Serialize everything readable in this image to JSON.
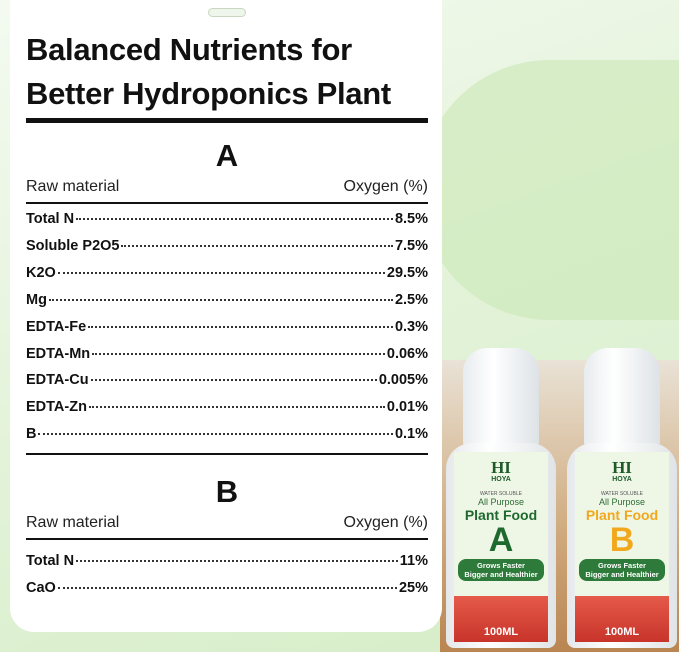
{
  "title_lines": [
    "Balanced Nutrients for",
    "Better Hydroponics Plant"
  ],
  "section_a": {
    "label": "A",
    "col1": "Raw material",
    "col2": "Oxygen (%)",
    "rows": [
      {
        "name": "Total N",
        "value": "8.5%"
      },
      {
        "name": "Soluble P2O5",
        "value": "7.5%"
      },
      {
        "name": "K2O",
        "value": "29.5%"
      },
      {
        "name": "Mg",
        "value": "2.5%"
      },
      {
        "name": "EDTA-Fe",
        "value": "0.3%"
      },
      {
        "name": "EDTA-Mn",
        "value": "0.06%"
      },
      {
        "name": "EDTA-Cu",
        "value": "0.005%"
      },
      {
        "name": "EDTA-Zn",
        "value": "0.01%"
      },
      {
        "name": "B",
        "value": "0.1%"
      }
    ]
  },
  "section_b": {
    "label": "B",
    "col1": "Raw material",
    "col2": "Oxygen (%)",
    "rows": [
      {
        "name": "Total N",
        "value": "11%"
      },
      {
        "name": "CaO",
        "value": "25%"
      }
    ]
  },
  "bottles": [
    {
      "brand": "HI",
      "brand_sub": "HOYA",
      "water": "WATER SOLUBLE",
      "purpose": "All Purpose",
      "product": "Plant Food",
      "letter": "A",
      "slogan1": "Grows Faster",
      "slogan2": "Bigger and Healthier",
      "volume": "100ML",
      "color": "#1e6a2e"
    },
    {
      "brand": "HI",
      "brand_sub": "HOYA",
      "water": "WATER SOLUBLE",
      "purpose": "All Purpose",
      "product": "Plant Food",
      "letter": "B",
      "slogan1": "Grows Faster",
      "slogan2": "Bigger and Healthier",
      "volume": "100ML",
      "color": "#f2a81d"
    }
  ]
}
